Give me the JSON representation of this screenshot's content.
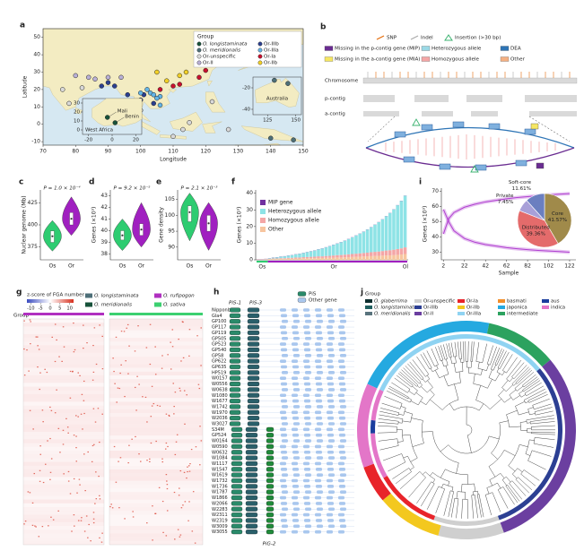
{
  "panel_a": {
    "label": "a",
    "legend_title": "Group",
    "groups": [
      {
        "name": "O. longistaminata",
        "color": "#17523a"
      },
      {
        "name": "O. meridionalis",
        "color": "#4d6f78"
      },
      {
        "name": "Or-unspecific",
        "color": "#d9d9d9"
      },
      {
        "name": "Or-II",
        "color": "#b9b0d6"
      },
      {
        "name": "Or-IIIb",
        "color": "#2b3f8f"
      },
      {
        "name": "Or-IIIa",
        "color": "#64b5e6"
      },
      {
        "name": "Or-Ia",
        "color": "#c8102e"
      },
      {
        "name": "Or-IIb",
        "color": "#f2d027"
      }
    ],
    "xlabel": "Longitude",
    "ylabel": "Latitude",
    "xlim": [
      70,
      150
    ],
    "ylim": [
      -12,
      55
    ],
    "xticks": [
      70,
      80,
      90,
      100,
      110,
      120,
      130,
      140,
      150
    ],
    "yticks": [
      -10,
      0,
      10,
      20,
      30,
      40,
      50
    ],
    "points": {
      "lon": [
        108,
        112,
        105,
        114,
        112,
        118,
        120,
        110,
        90,
        92,
        88,
        96,
        100,
        104,
        101,
        103,
        104,
        106,
        105,
        106,
        100,
        102,
        90,
        94,
        80,
        84,
        86,
        76,
        78,
        82,
        100,
        115,
        122,
        110,
        113,
        127,
        140,
        147,
        106
      ],
      "lat": [
        25,
        28,
        30,
        30,
        23,
        27,
        31,
        22,
        24,
        22,
        22,
        17,
        14,
        12,
        17,
        18,
        17,
        16,
        15,
        11,
        18,
        20,
        27,
        27,
        28,
        27,
        26,
        20,
        12,
        21,
        8,
        1,
        13,
        -7,
        -3,
        -3,
        -8,
        -9,
        20
      ],
      "group": [
        7,
        7,
        7,
        7,
        6,
        6,
        6,
        6,
        4,
        4,
        4,
        4,
        4,
        4,
        4,
        5,
        5,
        5,
        5,
        5,
        5,
        5,
        3,
        3,
        3,
        3,
        3,
        2,
        2,
        2,
        2,
        2,
        2,
        2,
        2,
        2,
        1,
        1,
        6
      ]
    },
    "inset_africa": {
      "title": "West Africa",
      "sites": [
        "Mali",
        "Benin"
      ],
      "xlim": [
        -25,
        25
      ],
      "ylim": [
        -5,
        35
      ],
      "xticks": [
        -20,
        0,
        20
      ],
      "yticks": [
        0,
        10,
        20,
        30
      ],
      "lon": [
        -4,
        2.5
      ],
      "lat": [
        14,
        8
      ],
      "group": [
        0,
        0
      ]
    },
    "inset_australia": {
      "title": "Australia",
      "xlim": [
        112,
        155
      ],
      "ylim": [
        -45,
        -10
      ],
      "xticks": [
        125,
        150
      ],
      "yticks": [
        -20,
        -40
      ],
      "lon": [
        131,
        143
      ],
      "lat": [
        -13,
        -16
      ],
      "group": [
        1,
        1
      ]
    }
  },
  "panel_b": {
    "label": "b",
    "legend": [
      {
        "name": "SNP",
        "color": "#e46c0a"
      },
      {
        "name": "Indel",
        "color": "#aaaaaa"
      },
      {
        "name": "Insertion (>30 bp)",
        "color": "#3cb371"
      },
      {
        "name": "Missing in the p-contig gene (MIP)",
        "color": "#6a2c91"
      },
      {
        "name": "Heterozygous allele",
        "color": "#9bd9e6"
      },
      {
        "name": "DEA",
        "color": "#2e75b6"
      },
      {
        "name": "Missing in the a-contig gene (MIA)",
        "color": "#f5e663"
      },
      {
        "name": "Homozygous allele",
        "color": "#f4a6a6"
      },
      {
        "name": "Other",
        "color": "#f4b183"
      }
    ],
    "tracks": [
      "Chromosome",
      "p-contig",
      "a-contig"
    ]
  },
  "violins": [
    {
      "label": "c",
      "ylabel": "Nuclear genome (Mb)",
      "p_label": "P = 1.0 × 10⁻⁴",
      "ylim": [
        360,
        440
      ],
      "yticks": [
        375,
        400,
        425
      ],
      "groups": [
        {
          "name": "Os",
          "color": "#2ecc71",
          "min": 370,
          "q1": 380,
          "median": 387,
          "q3": 393,
          "max": 405
        },
        {
          "name": "Or",
          "color": "#a020c0",
          "min": 388,
          "q1": 400,
          "median": 407,
          "q3": 414,
          "max": 432
        }
      ]
    },
    {
      "label": "d",
      "ylabel": "Genes (×10³)",
      "p_label": "P = 9.2 × 10⁻⁵",
      "ylim": [
        37.5,
        43.5
      ],
      "yticks": [
        38,
        39,
        40,
        41,
        42,
        43
      ],
      "groups": [
        {
          "name": "Os",
          "color": "#2ecc71",
          "min": 38.3,
          "q1": 39.2,
          "median": 39.6,
          "q3": 40.0,
          "max": 41.0
        },
        {
          "name": "Or",
          "color": "#a020c0",
          "min": 38.6,
          "q1": 39.6,
          "median": 40.1,
          "q3": 40.6,
          "max": 42.4
        }
      ]
    },
    {
      "label": "e",
      "ylabel": "Gene density",
      "p_label": "P = 2.1 × 10⁻³",
      "ylim": [
        86,
        108
      ],
      "yticks": [
        90,
        95,
        100,
        105
      ],
      "groups": [
        {
          "name": "Os",
          "color": "#2ecc71",
          "min": 92,
          "q1": 98,
          "median": 101,
          "q3": 103,
          "max": 107
        },
        {
          "name": "Or",
          "color": "#a020c0",
          "min": 89,
          "q1": 95,
          "median": 97.5,
          "q3": 100,
          "max": 104
        }
      ]
    }
  ],
  "panel_f": {
    "label": "f",
    "ylabel": "Genes (×10³)",
    "ylim": [
      0,
      42
    ],
    "yticks": [
      0,
      10,
      20,
      30,
      40
    ],
    "groups": [
      "Os",
      "Or",
      "Ol"
    ],
    "series": [
      {
        "name": "MIP gene",
        "color": "#7030a0",
        "values": [
          0.1,
          0.1,
          0.1,
          0.1,
          0.1,
          0.1,
          0.1,
          0.1,
          0.1,
          0.1,
          0.1,
          0.1,
          0.1,
          0.1,
          0.1,
          0.1,
          0.1,
          0.1,
          0.1,
          0.1,
          0.1,
          0.1,
          0.1,
          0.1,
          0.1,
          0.1,
          0.1,
          0.1,
          0.1,
          0.1,
          0.1,
          0.1,
          0.1,
          0.1,
          0.1,
          0.1,
          0.1,
          0.1,
          0.1,
          0.1
        ]
      },
      {
        "name": "Heterozygous allele",
        "color": "#8ee3e6",
        "values": [
          0,
          0,
          0.1,
          0.3,
          0.5,
          0.7,
          0.9,
          1.1,
          1.3,
          1.6,
          1.9,
          2.2,
          2.5,
          2.9,
          3.3,
          3.7,
          4.2,
          4.7,
          5.2,
          5.8,
          6.4,
          7.0,
          7.7,
          8.4,
          9.2,
          10.0,
          10.9,
          11.8,
          12.8,
          13.9,
          15.0,
          16.3,
          17.6,
          19.0,
          20.6,
          22.3,
          24.2,
          26.3,
          28.5,
          31.0
        ]
      },
      {
        "name": "Homozygous allele",
        "color": "#f4a6a6",
        "values": [
          0,
          0,
          0.1,
          0.2,
          0.3,
          0.3,
          0.4,
          0.4,
          0.5,
          0.5,
          0.6,
          0.6,
          0.7,
          0.8,
          0.8,
          0.9,
          1.0,
          1.0,
          1.1,
          1.2,
          1.3,
          1.4,
          1.5,
          1.6,
          1.7,
          1.8,
          1.9,
          2.0,
          2.1,
          2.2,
          2.4,
          2.5,
          2.6,
          2.8,
          3.0,
          3.1,
          3.3,
          3.5,
          3.7,
          4.0
        ]
      },
      {
        "name": "Other",
        "color": "#f7c59f",
        "values": [
          0.2,
          0.2,
          0.3,
          0.4,
          0.5,
          0.5,
          0.6,
          0.6,
          0.7,
          0.7,
          0.8,
          0.8,
          0.9,
          0.9,
          1.0,
          1.0,
          1.1,
          1.1,
          1.2,
          1.2,
          1.3,
          1.4,
          1.4,
          1.5,
          1.6,
          1.7,
          1.8,
          1.9,
          2.0,
          2.1,
          2.2,
          2.3,
          2.4,
          2.5,
          2.6,
          2.7,
          2.8,
          3.0,
          3.2,
          3.5
        ]
      }
    ]
  },
  "panel_i": {
    "label": "i",
    "ylabel": "Genes (×10³)",
    "xlabel": "Sample",
    "xlim": [
      0,
      128
    ],
    "ylim": [
      25,
      72
    ],
    "xticks": [
      2,
      22,
      42,
      62,
      82,
      102,
      122
    ],
    "yticks": [
      30,
      40,
      50,
      60,
      70
    ],
    "line_color": "#b040d0",
    "x": [
      2,
      7,
      12,
      22,
      32,
      42,
      52,
      62,
      72,
      82,
      92,
      102,
      112,
      122
    ],
    "pan": [
      42,
      52,
      56,
      59.5,
      61.5,
      63,
      64,
      65,
      65.8,
      66.4,
      67,
      67.5,
      68,
      68.4
    ],
    "core": [
      58,
      50,
      44,
      39,
      36.5,
      35,
      34,
      33,
      32.3,
      31.7,
      31.2,
      30.8,
      30.4,
      30
    ],
    "pie": {
      "labels": [
        "Core",
        "Distributed",
        "Private",
        "Soft-core"
      ],
      "values": [
        41.57,
        39.36,
        7.45,
        11.61
      ],
      "value_labels": [
        "41.57%",
        "39.36%",
        "7.45%",
        "11.61%"
      ],
      "colors": [
        "#a08a4a",
        "#e46b6b",
        "#a8a0d8",
        "#6b7fc0"
      ]
    }
  },
  "panel_g": {
    "label": "g",
    "title": "z-score of FGA number",
    "scale_lim": [
      -12,
      12
    ],
    "scale_ticks": [
      -10,
      -5,
      0,
      5,
      10
    ],
    "legend": [
      {
        "name": "O. longistaminata",
        "color": "#4d6f78"
      },
      {
        "name": "O. rufipogon",
        "color": "#b030c0"
      },
      {
        "name": "O. meridionalis",
        "color": "#17523a"
      },
      {
        "name": "O. sativa",
        "color": "#3cd070"
      }
    ],
    "group_label": "Group"
  },
  "panel_h": {
    "label": "h",
    "legend": [
      {
        "name": "PiS",
        "color": "#2a8a6a"
      },
      {
        "name": "Other gene",
        "color": "#a9c7ee"
      }
    ],
    "gene_labels": [
      "PiS-1",
      "PiS-3",
      "PiG-2"
    ],
    "samples": [
      "Nipponbare",
      "Gla4",
      "GP100",
      "GP117",
      "GP119",
      "GP505",
      "GP523",
      "GP540",
      "GP58",
      "GP622",
      "GP635",
      "HP519",
      "W0157",
      "W0556",
      "W0638",
      "W1080",
      "W1677",
      "W1742",
      "W1970",
      "W2036",
      "W3027",
      "S34M",
      "GP524",
      "W0164",
      "W0590",
      "W0632",
      "W1084",
      "W1117",
      "W1547",
      "W1619",
      "W1732",
      "W1736",
      "W1787",
      "W1866",
      "W2066",
      "W2283",
      "W2311",
      "W2319",
      "W3009",
      "W3055"
    ]
  },
  "panel_j": {
    "label": "j",
    "legend_title": "Group",
    "groups": [
      {
        "name": "O. glaberrima",
        "color": "#0e2f2f"
      },
      {
        "name": "Or-unspecific",
        "color": "#cfcfcf"
      },
      {
        "name": "Or-Ia",
        "color": "#e8242a"
      },
      {
        "name": "basmati",
        "color": "#f28e2b"
      },
      {
        "name": "aus",
        "color": "#1b3d9e"
      },
      {
        "name": "O. longistaminata",
        "color": "#1f5f5f"
      },
      {
        "name": "Or-IIIb",
        "color": "#2c3f93"
      },
      {
        "name": "Or-IIb",
        "color": "#f3c81e"
      },
      {
        "name": "japonica",
        "color": "#25a9e0"
      },
      {
        "name": "indica",
        "color": "#e376c8"
      },
      {
        "name": "O. meridionalis",
        "color": "#59737d"
      },
      {
        "name": "Or-II",
        "color": "#6b3fa0"
      },
      {
        "name": "Or-IIIa",
        "color": "#8fd3f2"
      },
      {
        "name": "intermediate",
        "color": "#2ca25f"
      }
    ]
  }
}
